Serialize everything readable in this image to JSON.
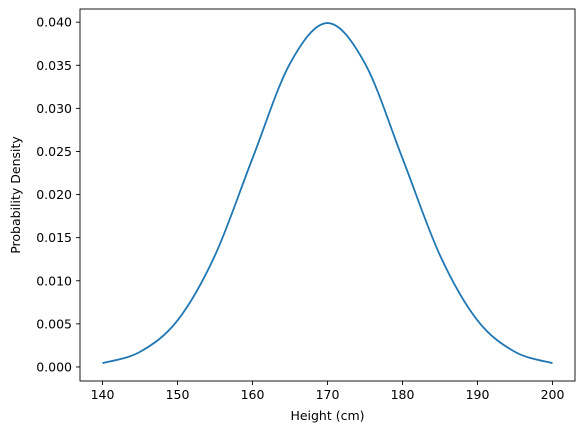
{
  "chart_data": {
    "type": "line",
    "title": "",
    "xlabel": "Height (cm)",
    "ylabel": "Probability Density",
    "xlim": [
      137,
      203
    ],
    "ylim": [
      -0.00163,
      0.04153
    ],
    "xticks": [
      140,
      150,
      160,
      170,
      180,
      190,
      200
    ],
    "xtick_labels": [
      "140",
      "150",
      "160",
      "170",
      "180",
      "190",
      "200"
    ],
    "yticks": [
      0.0,
      0.005,
      0.01,
      0.015,
      0.02,
      0.025,
      0.03,
      0.035,
      0.04
    ],
    "ytick_labels": [
      "0.000",
      "0.005",
      "0.010",
      "0.015",
      "0.020",
      "0.025",
      "0.030",
      "0.035",
      "0.040"
    ],
    "grid": false,
    "legend": "none",
    "color": "#1f77b4",
    "series": [
      {
        "x": [
          140,
          145,
          150,
          155,
          160,
          165,
          170,
          175,
          180,
          185,
          190,
          195,
          200
        ],
        "y": [
          0.00044,
          0.00175,
          0.0054,
          0.01295,
          0.0242,
          0.0352,
          0.0399,
          0.0352,
          0.0242,
          0.01295,
          0.0054,
          0.00175,
          0.00044
        ]
      }
    ]
  }
}
